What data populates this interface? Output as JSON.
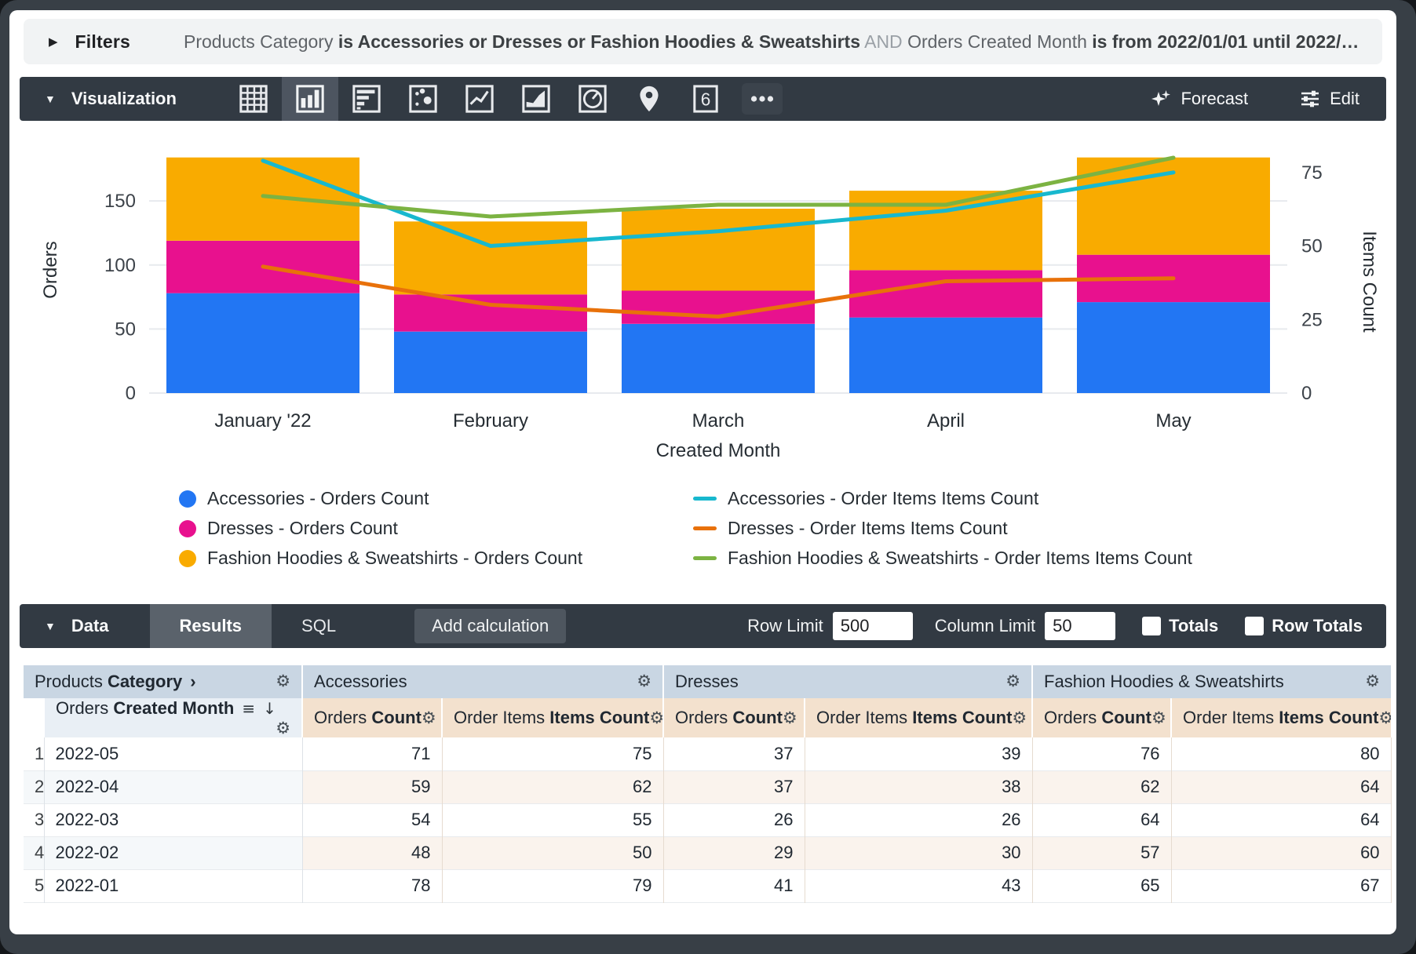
{
  "colors": {
    "toolbar_bg": "#323a43",
    "toolbar_selected": "#4d5560",
    "group_header_bg": "#c9d6e3",
    "measure_header_bg": "#f3e1ce",
    "dim_header_bg": "#e9eff5",
    "filter_bar_bg": "#f1f3f4"
  },
  "filters_bar": {
    "label": "Filters",
    "caret": "▶",
    "segments": [
      {
        "text": "Products Category ",
        "style": "dim"
      },
      {
        "text": "is Accessories or Dresses or Fashion Hoodies & Sweatshirts",
        "style": "val"
      },
      {
        "text": " AND ",
        "style": "and"
      },
      {
        "text": "Orders Created Month ",
        "style": "dim"
      },
      {
        "text": "is from 2022/01/01 until 2022/…",
        "style": "val"
      }
    ]
  },
  "viz_bar": {
    "label": "Visualization",
    "caret": "▼",
    "icons": [
      "table",
      "column",
      "bar",
      "scatter",
      "line",
      "area",
      "pie",
      "map",
      "single-value",
      "more"
    ],
    "selected_icon": "column",
    "forecast_label": "Forecast",
    "edit_label": "Edit"
  },
  "chart_data": {
    "type": "combo-stacked-bar-line",
    "categories": [
      "January '22",
      "February",
      "March",
      "April",
      "May"
    ],
    "xlabel": "Created Month",
    "left_axis": {
      "label": "Orders",
      "ticks": [
        0,
        50,
        100,
        150
      ],
      "max": 193
    },
    "right_axis": {
      "label": "Items Count",
      "ticks": [
        0,
        25,
        50,
        75
      ],
      "max": 84
    },
    "bar_series": [
      {
        "name": "Accessories - Orders Count",
        "color": "#2276f3",
        "values": [
          78,
          48,
          54,
          59,
          71
        ]
      },
      {
        "name": "Dresses - Orders Count",
        "color": "#e8118e",
        "values": [
          41,
          29,
          26,
          37,
          37
        ]
      },
      {
        "name": "Fashion Hoodies & Sweatshirts - Orders Count",
        "color": "#f9ab00",
        "values": [
          65,
          57,
          64,
          62,
          76
        ]
      }
    ],
    "line_series": [
      {
        "name": "Accessories - Order Items Items Count",
        "color": "#18b8ce",
        "values": [
          79,
          50,
          55,
          62,
          75
        ]
      },
      {
        "name": "Dresses - Order Items Items Count",
        "color": "#e8710a",
        "values": [
          43,
          30,
          26,
          38,
          39
        ]
      },
      {
        "name": "Fashion Hoodies & Sweatshirts - Order Items Items Count",
        "color": "#7cb342",
        "values": [
          67,
          60,
          64,
          64,
          80
        ]
      }
    ]
  },
  "data_bar": {
    "label": "Data",
    "caret": "▼",
    "tabs": [
      "Results",
      "SQL"
    ],
    "active_tab": "Results",
    "add_calculation_label": "Add calculation",
    "row_limit_label": "Row Limit",
    "row_limit_value": "500",
    "column_limit_label": "Column Limit",
    "column_limit_value": "50",
    "totals_label": "Totals",
    "row_totals_label": "Row Totals"
  },
  "table": {
    "groups": [
      {
        "regular": "Products ",
        "bold": "Category",
        "chevron": "›"
      },
      {
        "label": "Accessories"
      },
      {
        "label": "Dresses"
      },
      {
        "label": "Fashion Hoodies & Sweatshirts"
      }
    ],
    "dim_header": {
      "regular": "Orders ",
      "bold": "Created Month",
      "icons": [
        "subtotal",
        "sort-desc",
        "gear"
      ]
    },
    "measure_headers": [
      {
        "regular": "Orders ",
        "bold": "Count"
      },
      {
        "regular": "Order Items ",
        "bold": "Items Count"
      }
    ],
    "rows": [
      {
        "n": "1",
        "month": "2022-05",
        "values": [
          71,
          75,
          37,
          39,
          76,
          80
        ]
      },
      {
        "n": "2",
        "month": "2022-04",
        "values": [
          59,
          62,
          37,
          38,
          62,
          64
        ]
      },
      {
        "n": "3",
        "month": "2022-03",
        "values": [
          54,
          55,
          26,
          26,
          64,
          64
        ]
      },
      {
        "n": "4",
        "month": "2022-02",
        "values": [
          48,
          50,
          29,
          30,
          57,
          60
        ]
      },
      {
        "n": "5",
        "month": "2022-01",
        "values": [
          78,
          79,
          41,
          43,
          65,
          67
        ]
      }
    ]
  }
}
